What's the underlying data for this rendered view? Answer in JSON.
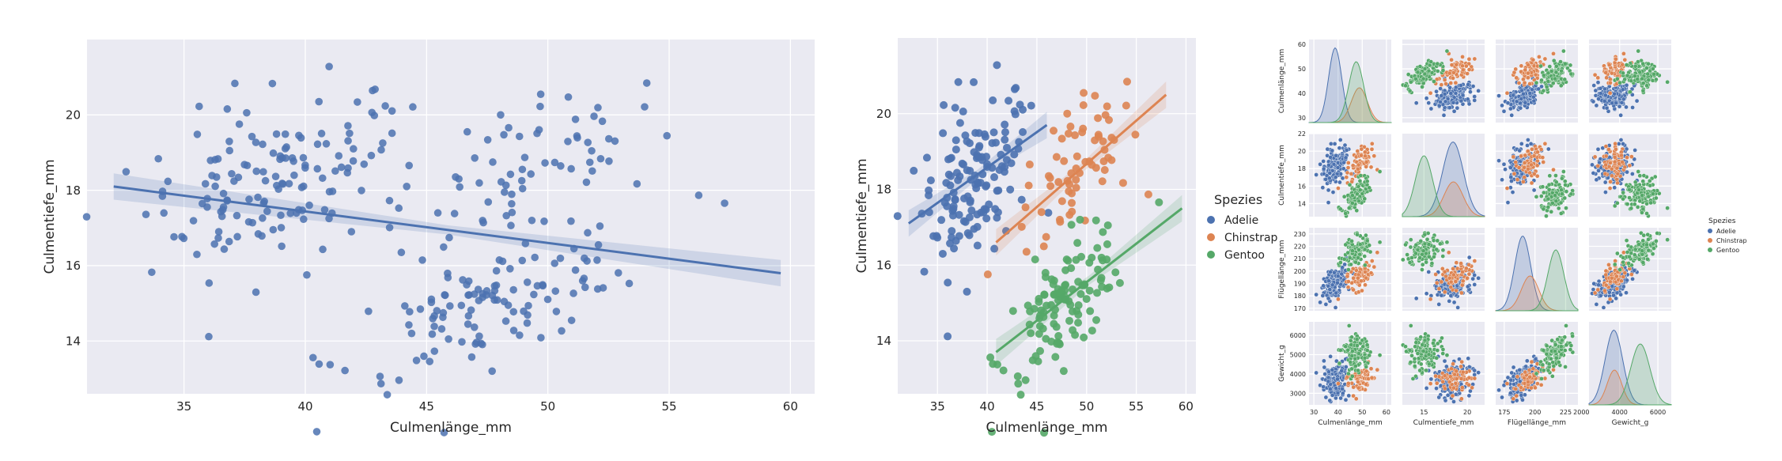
{
  "colors": {
    "Adelie": "#4c72b0",
    "Chinstrap": "#dd8452",
    "Gentoo": "#55a868",
    "all": "#4c72b0"
  },
  "chart_data": [
    {
      "type": "scatter",
      "xlabel": "Culmenlänge_mm",
      "ylabel": "Culmentiefe_mm",
      "xlim": [
        31,
        61
      ],
      "ylim": [
        12.6,
        22
      ],
      "xticks": [
        35,
        40,
        45,
        50,
        55,
        60
      ],
      "yticks": [
        14,
        16,
        18,
        20
      ],
      "grid": true,
      "regression": {
        "x": [
          32.1,
          59.6
        ],
        "y": [
          18.1,
          15.8
        ]
      },
      "n_points": 333
    },
    {
      "type": "scatter",
      "xlabel": "Culmenlänge_mm",
      "ylabel": "Culmentiefe_mm",
      "xlim": [
        31,
        61
      ],
      "ylim": [
        12.6,
        22
      ],
      "xticks": [
        35,
        40,
        45,
        50,
        55,
        60
      ],
      "yticks": [
        14,
        16,
        18,
        20
      ],
      "grid": true,
      "legend": {
        "title": "Spezies",
        "entries": [
          "Adelie",
          "Chinstrap",
          "Gentoo"
        ],
        "placement": "right outside"
      },
      "series": [
        {
          "name": "Adelie",
          "x_range": [
            32.1,
            46.0
          ],
          "regression": {
            "x": [
              32.1,
              46.0
            ],
            "y": [
              17.1,
              19.7
            ]
          }
        },
        {
          "name": "Chinstrap",
          "x_range": [
            40.9,
            58.0
          ],
          "regression": {
            "x": [
              40.9,
              58.0
            ],
            "y": [
              16.6,
              20.5
            ]
          }
        },
        {
          "name": "Gentoo",
          "x_range": [
            40.9,
            59.6
          ],
          "regression": {
            "x": [
              40.9,
              59.6
            ],
            "y": [
              13.7,
              17.5
            ]
          }
        }
      ]
    },
    {
      "type": "scatter",
      "subtype": "pairplot",
      "variables": [
        "Culmenlänge_mm",
        "Culmentiefe_mm",
        "Flügellänge_mm",
        "Gewicht_g"
      ],
      "ticks": {
        "Culmenlänge_mm": {
          "range": [
            28,
            62
          ],
          "ticks": [
            30,
            40,
            50,
            60
          ]
        },
        "Culmentiefe_mm": {
          "range": [
            12.5,
            22
          ],
          "ticks": [
            14,
            16,
            18,
            20,
            22
          ],
          "xticks": [
            15,
            20
          ]
        },
        "Flügellänge_mm": {
          "range": [
            168,
            235
          ],
          "ticks": [
            170,
            180,
            190,
            200,
            210,
            220,
            230
          ],
          "xticks": [
            175,
            200,
            225
          ]
        },
        "Gewicht_g": {
          "range": [
            2400,
            6700
          ],
          "ticks": [
            3000,
            4000,
            5000,
            6000
          ],
          "xticks": [
            2000,
            4000,
            6000
          ]
        }
      },
      "legend": {
        "title": "Spezies",
        "entries": [
          "Adelie",
          "Chinstrap",
          "Gentoo"
        ],
        "placement": "right outside"
      },
      "species_means": {
        "Adelie": {
          "Culmenlänge_mm": 38.8,
          "Culmentiefe_mm": 18.35,
          "Flügellänge_mm": 190,
          "Gewicht_g": 3700
        },
        "Chinstrap": {
          "Culmenlänge_mm": 48.8,
          "Culmentiefe_mm": 18.4,
          "Flügellänge_mm": 196,
          "Gewicht_g": 3730
        },
        "Gentoo": {
          "Culmenlänge_mm": 47.5,
          "Culmentiefe_mm": 15.0,
          "Flügellänge_mm": 217,
          "Gewicht_g": 5080
        }
      },
      "species_sd": {
        "Adelie": {
          "Culmenlänge_mm": 2.7,
          "Culmentiefe_mm": 1.2,
          "Flügellänge_mm": 6.5,
          "Gewicht_g": 460
        },
        "Chinstrap": {
          "Culmenlänge_mm": 3.3,
          "Culmentiefe_mm": 1.1,
          "Flügellänge_mm": 7.1,
          "Gewicht_g": 380
        },
        "Gentoo": {
          "Culmenlänge_mm": 3.1,
          "Culmentiefe_mm": 1.0,
          "Flügellänge_mm": 6.5,
          "Gewicht_g": 500
        }
      }
    }
  ]
}
